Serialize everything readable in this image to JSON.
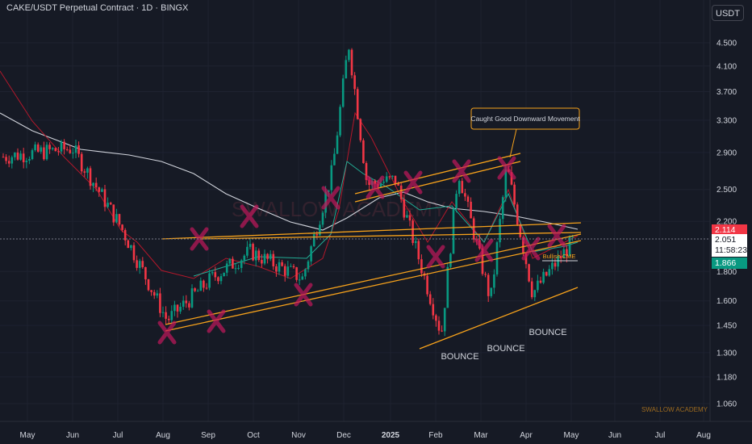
{
  "header": {
    "title": "CAKE/USDT Perpetual Contract · 1D · BINGX",
    "currency_button": "USDT"
  },
  "watermark": {
    "center": "SWALLOW ACADEMY",
    "corner": "SWALLOW ACADEMY"
  },
  "price_badges": {
    "upper": {
      "value": "2.114",
      "color": "#f23645"
    },
    "current": {
      "value": "2.051",
      "countdown": "11:58:23"
    },
    "lower": {
      "value": "1.866",
      "color": "#089981"
    }
  },
  "annotations": {
    "callout": "Caught Good Downward Movement",
    "bounce_labels": [
      "BOUNCE",
      "BOUNCE",
      "BOUNCE"
    ],
    "cme_label": "Bullish CME"
  },
  "colors": {
    "background": "#161a25",
    "up": "#089981",
    "down": "#f23645",
    "channel": "#f7a21b",
    "ma_white": "#d1d4dc",
    "ma_red": "#b2182b",
    "ma_green": "#22ab94",
    "marker": "#c2185b"
  },
  "chart_data": {
    "type": "candlestick",
    "y_scale": "log",
    "y_ticks": [
      "4.500",
      "4.100",
      "3.700",
      "3.300",
      "2.900",
      "2.500",
      "2.200",
      "1.800",
      "1.600",
      "1.450",
      "1.300",
      "1.180",
      "1.060"
    ],
    "x_ticks": [
      "May",
      "Jun",
      "Jul",
      "Aug",
      "Sep",
      "Oct",
      "Nov",
      "Dec",
      "2025",
      "Feb",
      "Mar",
      "Apr",
      "May",
      "Jun",
      "Jul",
      "Aug"
    ],
    "grid": true,
    "series": [
      {
        "name": "CAKE/USDT",
        "points": [
          [
            "May",
            2.85
          ],
          [
            "Jun",
            2.95
          ],
          [
            "Jul",
            2.15
          ],
          [
            "Aug",
            1.48
          ],
          [
            "Sep",
            1.75
          ],
          [
            "Oct",
            1.95
          ],
          [
            "Nov",
            1.75
          ],
          [
            "Nov",
            2.7
          ],
          [
            "Dec",
            4.5
          ],
          [
            "Dec",
            2.55
          ],
          [
            "2025",
            2.55
          ],
          [
            "Feb",
            1.4
          ],
          [
            "Feb",
            2.7
          ],
          [
            "Mar",
            1.6
          ],
          [
            "Mar",
            2.75
          ],
          [
            "Apr",
            1.65
          ],
          [
            "May",
            2.05
          ]
        ]
      }
    ]
  }
}
